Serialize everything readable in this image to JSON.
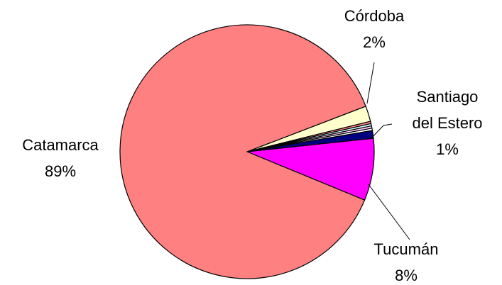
{
  "chart_data": {
    "type": "pie",
    "categories": [
      "Córdoba",
      null,
      null,
      null,
      null,
      "Santiago del Estero",
      "Tucumán",
      "Catamarca"
    ],
    "values": [
      2,
      0.3,
      0.3,
      0.3,
      0.3,
      1,
      8,
      89
    ],
    "value_labels": [
      "2%",
      null,
      null,
      null,
      null,
      "1%",
      "8%",
      "89%"
    ],
    "colors": [
      "#ffffcc",
      "#ff8080",
      "#ccffff",
      "#ffccff",
      "#ffffff",
      "#000080",
      "#ff00ff",
      "#ff8080"
    ]
  }
}
